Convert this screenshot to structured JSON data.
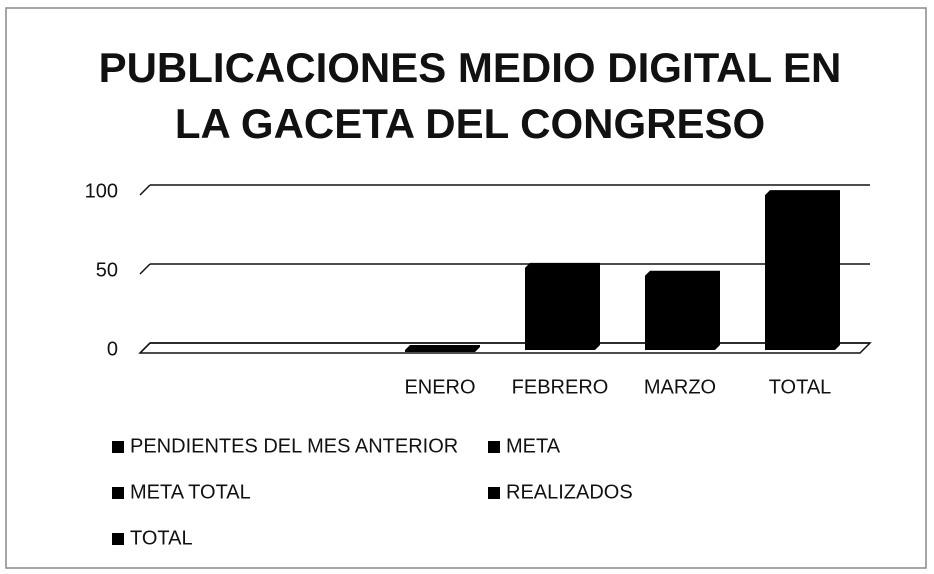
{
  "chart_data": {
    "type": "bar",
    "title": "PUBLICACIONES MEDIO DIGITAL EN LA GACETA DEL CONGRESO",
    "categories": [
      null,
      null,
      "ENERO",
      "FEBRERO",
      "MARZO",
      "TOTAL"
    ],
    "series": [
      {
        "name": "PENDIENTES DEL MES ANTERIOR",
        "color": "#000000",
        "values": [
          null,
          null,
          null,
          null,
          null,
          null
        ]
      },
      {
        "name": "META",
        "color": "#000000",
        "values": [
          null,
          null,
          null,
          null,
          null,
          null
        ]
      },
      {
        "name": "META TOTAL",
        "color": "#000000",
        "values": [
          null,
          null,
          null,
          null,
          null,
          null
        ]
      },
      {
        "name": "REALIZADOS",
        "color": "#000000",
        "values": [
          null,
          null,
          0,
          52,
          47,
          null
        ]
      },
      {
        "name": "TOTAL",
        "color": "#000000",
        "values": [
          null,
          null,
          null,
          null,
          null,
          98
        ]
      }
    ],
    "ylim": [
      0,
      100
    ],
    "yticks": [
      0,
      50,
      100
    ],
    "grid": true
  }
}
